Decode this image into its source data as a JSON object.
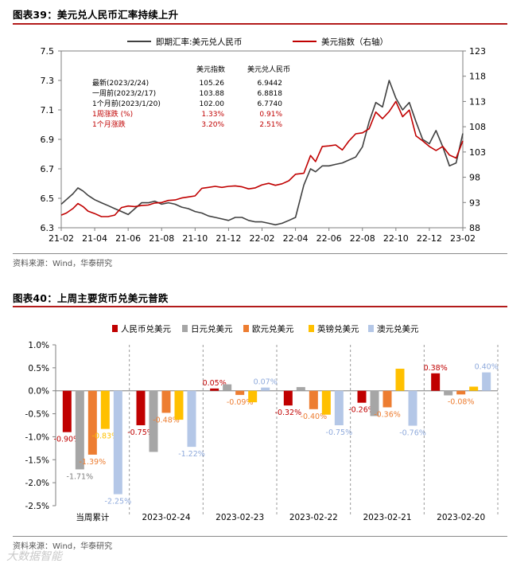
{
  "chart1": {
    "title": "图表39：美元兑人民币汇率持续上升",
    "source": "资料来源：Wind，华泰研究",
    "chart_data": {
      "type": "line",
      "legend": [
        {
          "name": "即期汇率:美元兑人民币",
          "color": "#404040",
          "axis": "left"
        },
        {
          "name": "美元指数（右轴）",
          "color": "#c00000",
          "axis": "right"
        }
      ],
      "x_ticks": [
        "21-02",
        "21-04",
        "21-06",
        "21-08",
        "21-10",
        "21-12",
        "22-02",
        "22-04",
        "22-06",
        "22-08",
        "22-10",
        "22-12",
        "23-02"
      ],
      "y_left": {
        "min": 6.3,
        "max": 7.5,
        "ticks": [
          "7.5",
          "7.3",
          "7.1",
          "6.9",
          "6.7",
          "6.5",
          "6.3"
        ]
      },
      "y_right": {
        "min": 88,
        "max": 123,
        "ticks": [
          "123",
          "118",
          "113",
          "108",
          "103",
          "98",
          "93",
          "88"
        ]
      },
      "series": [
        {
          "name": "即期汇率:美元兑人民币",
          "axis": "left",
          "color": "#404040",
          "x": [
            0,
            0.3,
            0.7,
            1.0,
            1.3,
            1.6,
            2.0,
            2.4,
            2.8,
            3.2,
            3.6,
            4.0,
            4.4,
            4.8,
            5.2,
            5.6,
            6.0,
            6.4,
            6.8,
            7.2,
            7.6,
            8.0,
            8.4,
            8.8,
            9.2,
            9.6,
            10.0,
            10.4,
            10.8,
            11.2,
            11.6,
            12.0,
            12.4,
            12.8,
            13.2,
            13.6,
            14.0,
            14.5,
            14.9,
            15.2,
            15.6,
            16.0,
            16.4,
            16.8,
            17.2,
            17.6,
            18.0,
            18.4,
            18.8,
            19.2,
            19.6,
            20.0,
            20.4,
            20.8,
            21.2,
            21.6,
            22.0,
            22.4,
            22.8,
            23.2,
            23.6,
            24.0
          ],
          "y": [
            6.46,
            6.49,
            6.53,
            6.57,
            6.55,
            6.52,
            6.49,
            6.47,
            6.45,
            6.43,
            6.41,
            6.39,
            6.43,
            6.47,
            6.47,
            6.48,
            6.46,
            6.47,
            6.46,
            6.44,
            6.43,
            6.41,
            6.4,
            6.38,
            6.37,
            6.36,
            6.35,
            6.37,
            6.37,
            6.35,
            6.34,
            6.34,
            6.33,
            6.32,
            6.33,
            6.35,
            6.37,
            6.59,
            6.7,
            6.68,
            6.72,
            6.72,
            6.73,
            6.74,
            6.76,
            6.78,
            6.85,
            7.02,
            7.15,
            7.12,
            7.3,
            7.18,
            7.1,
            7.15,
            7.02,
            6.9,
            6.87,
            6.96,
            6.85,
            6.72,
            6.74,
            6.94
          ]
        },
        {
          "name": "美元指数（右轴）",
          "axis": "right",
          "color": "#c00000",
          "x": [
            0,
            0.3,
            0.7,
            1.0,
            1.3,
            1.6,
            2.0,
            2.4,
            2.8,
            3.2,
            3.6,
            4.0,
            4.4,
            4.8,
            5.2,
            5.6,
            6.0,
            6.4,
            6.8,
            7.2,
            7.6,
            8.0,
            8.4,
            8.8,
            9.2,
            9.6,
            10.0,
            10.4,
            10.8,
            11.2,
            11.6,
            12.0,
            12.4,
            12.8,
            13.2,
            13.6,
            14.0,
            14.5,
            14.9,
            15.2,
            15.6,
            16.0,
            16.4,
            16.8,
            17.2,
            17.6,
            18.0,
            18.4,
            18.8,
            19.2,
            19.6,
            20.0,
            20.4,
            20.8,
            21.2,
            21.6,
            22.0,
            22.4,
            22.8,
            23.2,
            23.6,
            24.0
          ],
          "y": [
            90.5,
            90.9,
            91.8,
            92.8,
            92.2,
            91.3,
            90.8,
            90.2,
            90.2,
            90.5,
            92.0,
            92.3,
            92.2,
            92.4,
            92.5,
            92.9,
            93.0,
            93.4,
            93.5,
            93.9,
            94.1,
            94.3,
            95.8,
            96.0,
            96.2,
            96.0,
            96.2,
            96.3,
            96.1,
            95.7,
            95.9,
            96.5,
            96.8,
            96.4,
            96.7,
            97.3,
            98.6,
            98.8,
            102.3,
            101.1,
            104.1,
            104.2,
            104.4,
            103.4,
            105.2,
            106.6,
            106.8,
            107.6,
            110.9,
            109.6,
            111.0,
            113.0,
            110.0,
            111.3,
            106.2,
            105.2,
            104.1,
            103.3,
            104.1,
            102.4,
            101.8,
            105.2
          ]
        }
      ]
    },
    "annotation": {
      "headers": [
        "美元指数",
        "美元兑人民币"
      ],
      "rows": [
        {
          "label": "最新(2023/2/24)",
          "v1": "105.26",
          "v2": "6.9442",
          "red": false
        },
        {
          "label": "一周前(2023/2/17)",
          "v1": "103.88",
          "v2": "6.8818",
          "red": false
        },
        {
          "label": "1个月前(2023/1/20)",
          "v1": "102.00",
          "v2": "6.7740",
          "red": false
        },
        {
          "label": "1周涨跌 (%)",
          "v1": "1.33%",
          "v2": "0.91%",
          "red": true
        },
        {
          "label": "1个月涨跌",
          "v1": "3.20%",
          "v2": "2.51%",
          "red": true
        }
      ]
    }
  },
  "chart2": {
    "title": "图表40：上周主要货币兑美元普跌",
    "source": "资料来源：Wind，华泰研究",
    "chart_data": {
      "type": "bar",
      "categories": [
        "当周累计",
        "2023-02-24",
        "2023-02-23",
        "2023-02-22",
        "2023-02-21",
        "2023-02-20"
      ],
      "y_axis": {
        "min": -2.5,
        "max": 1.0,
        "ticks": [
          "1.0%",
          "0.5%",
          "0.0%",
          "-0.5%",
          "-1.0%",
          "-1.5%",
          "-2.0%",
          "-2.5%"
        ]
      },
      "series": [
        {
          "name": "人民币兑美元",
          "color": "#c00000",
          "values": [
            -0.9,
            -0.75,
            0.05,
            -0.32,
            -0.26,
            0.38
          ],
          "labels": [
            "-0.90%",
            "-0.75%",
            "0.05%",
            "-0.32%",
            "-0.26%",
            "0.38%"
          ]
        },
        {
          "name": "日元兑美元",
          "color": "#a6a6a6",
          "values": [
            -1.71,
            -1.33,
            0.14,
            0.08,
            -0.55,
            -0.1
          ],
          "labels": [
            "-1.71%",
            "",
            "",
            "",
            "",
            ""
          ]
        },
        {
          "name": "欧元兑美元",
          "color": "#ed7d31",
          "values": [
            -1.39,
            -0.48,
            -0.09,
            -0.4,
            -0.36,
            -0.08
          ],
          "labels": [
            "-1.39%",
            "-0.48%",
            "-0.09%",
            "-0.40%",
            "-0.36%",
            "-0.08%"
          ]
        },
        {
          "name": "英镑兑美元",
          "color": "#ffc000",
          "values": [
            -0.83,
            -0.63,
            -0.25,
            -0.52,
            0.48,
            0.09
          ],
          "labels": [
            "-0.83%",
            "",
            "",
            "",
            "",
            ""
          ]
        },
        {
          "name": "澳元兑美元",
          "color": "#b4c7e7",
          "values": [
            -2.25,
            -1.22,
            0.07,
            -0.75,
            -0.76,
            0.4
          ],
          "labels": [
            "-2.25%",
            "-1.22%",
            "0.07%",
            "-0.75%",
            "-0.76%",
            "0.40%"
          ]
        }
      ]
    }
  },
  "watermark": "大数据智能"
}
